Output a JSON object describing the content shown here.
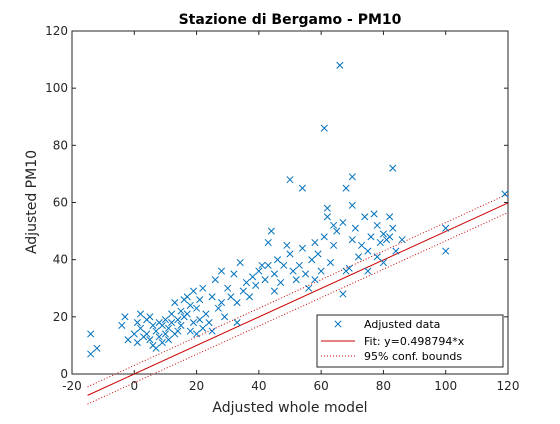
{
  "chart_data": {
    "type": "scatter",
    "title": "Stazione di Bergamo - PM10",
    "xlabel": "Adjusted whole model",
    "ylabel": "Adjusted PM10",
    "xlim": [
      -20,
      120
    ],
    "ylim": [
      0,
      120
    ],
    "xticks": [
      -20,
      0,
      20,
      40,
      60,
      80,
      100,
      120
    ],
    "yticks": [
      0,
      20,
      40,
      60,
      80,
      100,
      120
    ],
    "grid": false,
    "legend_position": "bottom-right",
    "legend": [
      "Adjusted data",
      "Fit: y=0.498794*x",
      "95% conf. bounds"
    ],
    "series": [
      {
        "name": "Adjusted data",
        "marker": "x",
        "color": "#0072BD",
        "points": [
          [
            -14,
            14
          ],
          [
            -14,
            7
          ],
          [
            -12,
            9
          ],
          [
            -4,
            17
          ],
          [
            -3,
            20
          ],
          [
            -2,
            12
          ],
          [
            0,
            14
          ],
          [
            1,
            11
          ],
          [
            1,
            18
          ],
          [
            2,
            16
          ],
          [
            2,
            21
          ],
          [
            3,
            13
          ],
          [
            4,
            14
          ],
          [
            4,
            19
          ],
          [
            5,
            20
          ],
          [
            5,
            12
          ],
          [
            6,
            17
          ],
          [
            6,
            10
          ],
          [
            7,
            15
          ],
          [
            7,
            9
          ],
          [
            8,
            18
          ],
          [
            8,
            13
          ],
          [
            9,
            17
          ],
          [
            9,
            11
          ],
          [
            10,
            14
          ],
          [
            10,
            19
          ],
          [
            11,
            16
          ],
          [
            11,
            12
          ],
          [
            12,
            21
          ],
          [
            12,
            18
          ],
          [
            13,
            14
          ],
          [
            13,
            25
          ],
          [
            14,
            15
          ],
          [
            14,
            19
          ],
          [
            15,
            22
          ],
          [
            15,
            17
          ],
          [
            16,
            26
          ],
          [
            16,
            20
          ],
          [
            17,
            27
          ],
          [
            17,
            21
          ],
          [
            18,
            15
          ],
          [
            18,
            24
          ],
          [
            19,
            18
          ],
          [
            19,
            29
          ],
          [
            20,
            23
          ],
          [
            20,
            14
          ],
          [
            21,
            26
          ],
          [
            21,
            19
          ],
          [
            22,
            16
          ],
          [
            22,
            30
          ],
          [
            23,
            21
          ],
          [
            24,
            18
          ],
          [
            25,
            27
          ],
          [
            25,
            15
          ],
          [
            26,
            33
          ],
          [
            27,
            23
          ],
          [
            28,
            36
          ],
          [
            28,
            25
          ],
          [
            29,
            20
          ],
          [
            30,
            30
          ],
          [
            31,
            27
          ],
          [
            32,
            35
          ],
          [
            33,
            18
          ],
          [
            33,
            25
          ],
          [
            34,
            39
          ],
          [
            35,
            29
          ],
          [
            36,
            32
          ],
          [
            37,
            27
          ],
          [
            38,
            34
          ],
          [
            39,
            31
          ],
          [
            40,
            36
          ],
          [
            41,
            38
          ],
          [
            42,
            33
          ],
          [
            43,
            46
          ],
          [
            43,
            38
          ],
          [
            44,
            50
          ],
          [
            45,
            35
          ],
          [
            45,
            29
          ],
          [
            46,
            40
          ],
          [
            47,
            32
          ],
          [
            48,
            38
          ],
          [
            49,
            45
          ],
          [
            50,
            68
          ],
          [
            50,
            42
          ],
          [
            51,
            36
          ],
          [
            52,
            33
          ],
          [
            53,
            38
          ],
          [
            54,
            44
          ],
          [
            54,
            65
          ],
          [
            55,
            35
          ],
          [
            56,
            30
          ],
          [
            57,
            40
          ],
          [
            58,
            46
          ],
          [
            58,
            33
          ],
          [
            59,
            42
          ],
          [
            60,
            36
          ],
          [
            61,
            86
          ],
          [
            61,
            48
          ],
          [
            62,
            55
          ],
          [
            62,
            58
          ],
          [
            63,
            39
          ],
          [
            64,
            52
          ],
          [
            64,
            45
          ],
          [
            65,
            50
          ],
          [
            66,
            108
          ],
          [
            67,
            53
          ],
          [
            67,
            28
          ],
          [
            68,
            36
          ],
          [
            68,
            65
          ],
          [
            69,
            37
          ],
          [
            70,
            69
          ],
          [
            70,
            59
          ],
          [
            70,
            47
          ],
          [
            71,
            51
          ],
          [
            72,
            41
          ],
          [
            73,
            45
          ],
          [
            74,
            55
          ],
          [
            75,
            43
          ],
          [
            75,
            36
          ],
          [
            76,
            48
          ],
          [
            77,
            56
          ],
          [
            78,
            52
          ],
          [
            78,
            41
          ],
          [
            79,
            46
          ],
          [
            80,
            49
          ],
          [
            80,
            39
          ],
          [
            81,
            47
          ],
          [
            82,
            55
          ],
          [
            82,
            48
          ],
          [
            83,
            72
          ],
          [
            83,
            51
          ],
          [
            84,
            43
          ],
          [
            86,
            47
          ],
          [
            100,
            51
          ],
          [
            100,
            43
          ],
          [
            119,
            63
          ]
        ]
      },
      {
        "name": "Fit: y=0.498794*x",
        "kind": "line",
        "color": "#cc0000",
        "x": [
          -15,
          120
        ],
        "y": [
          -7.48,
          59.86
        ]
      },
      {
        "name": "95% conf. bounds",
        "kind": "line",
        "style": "dotted",
        "color": "#cc0000",
        "upper": {
          "x": [
            -15,
            120
          ],
          "y": [
            -4.5,
            63
          ]
        },
        "lower": {
          "x": [
            -15,
            120
          ],
          "y": [
            -10.5,
            56.5
          ]
        }
      }
    ]
  }
}
